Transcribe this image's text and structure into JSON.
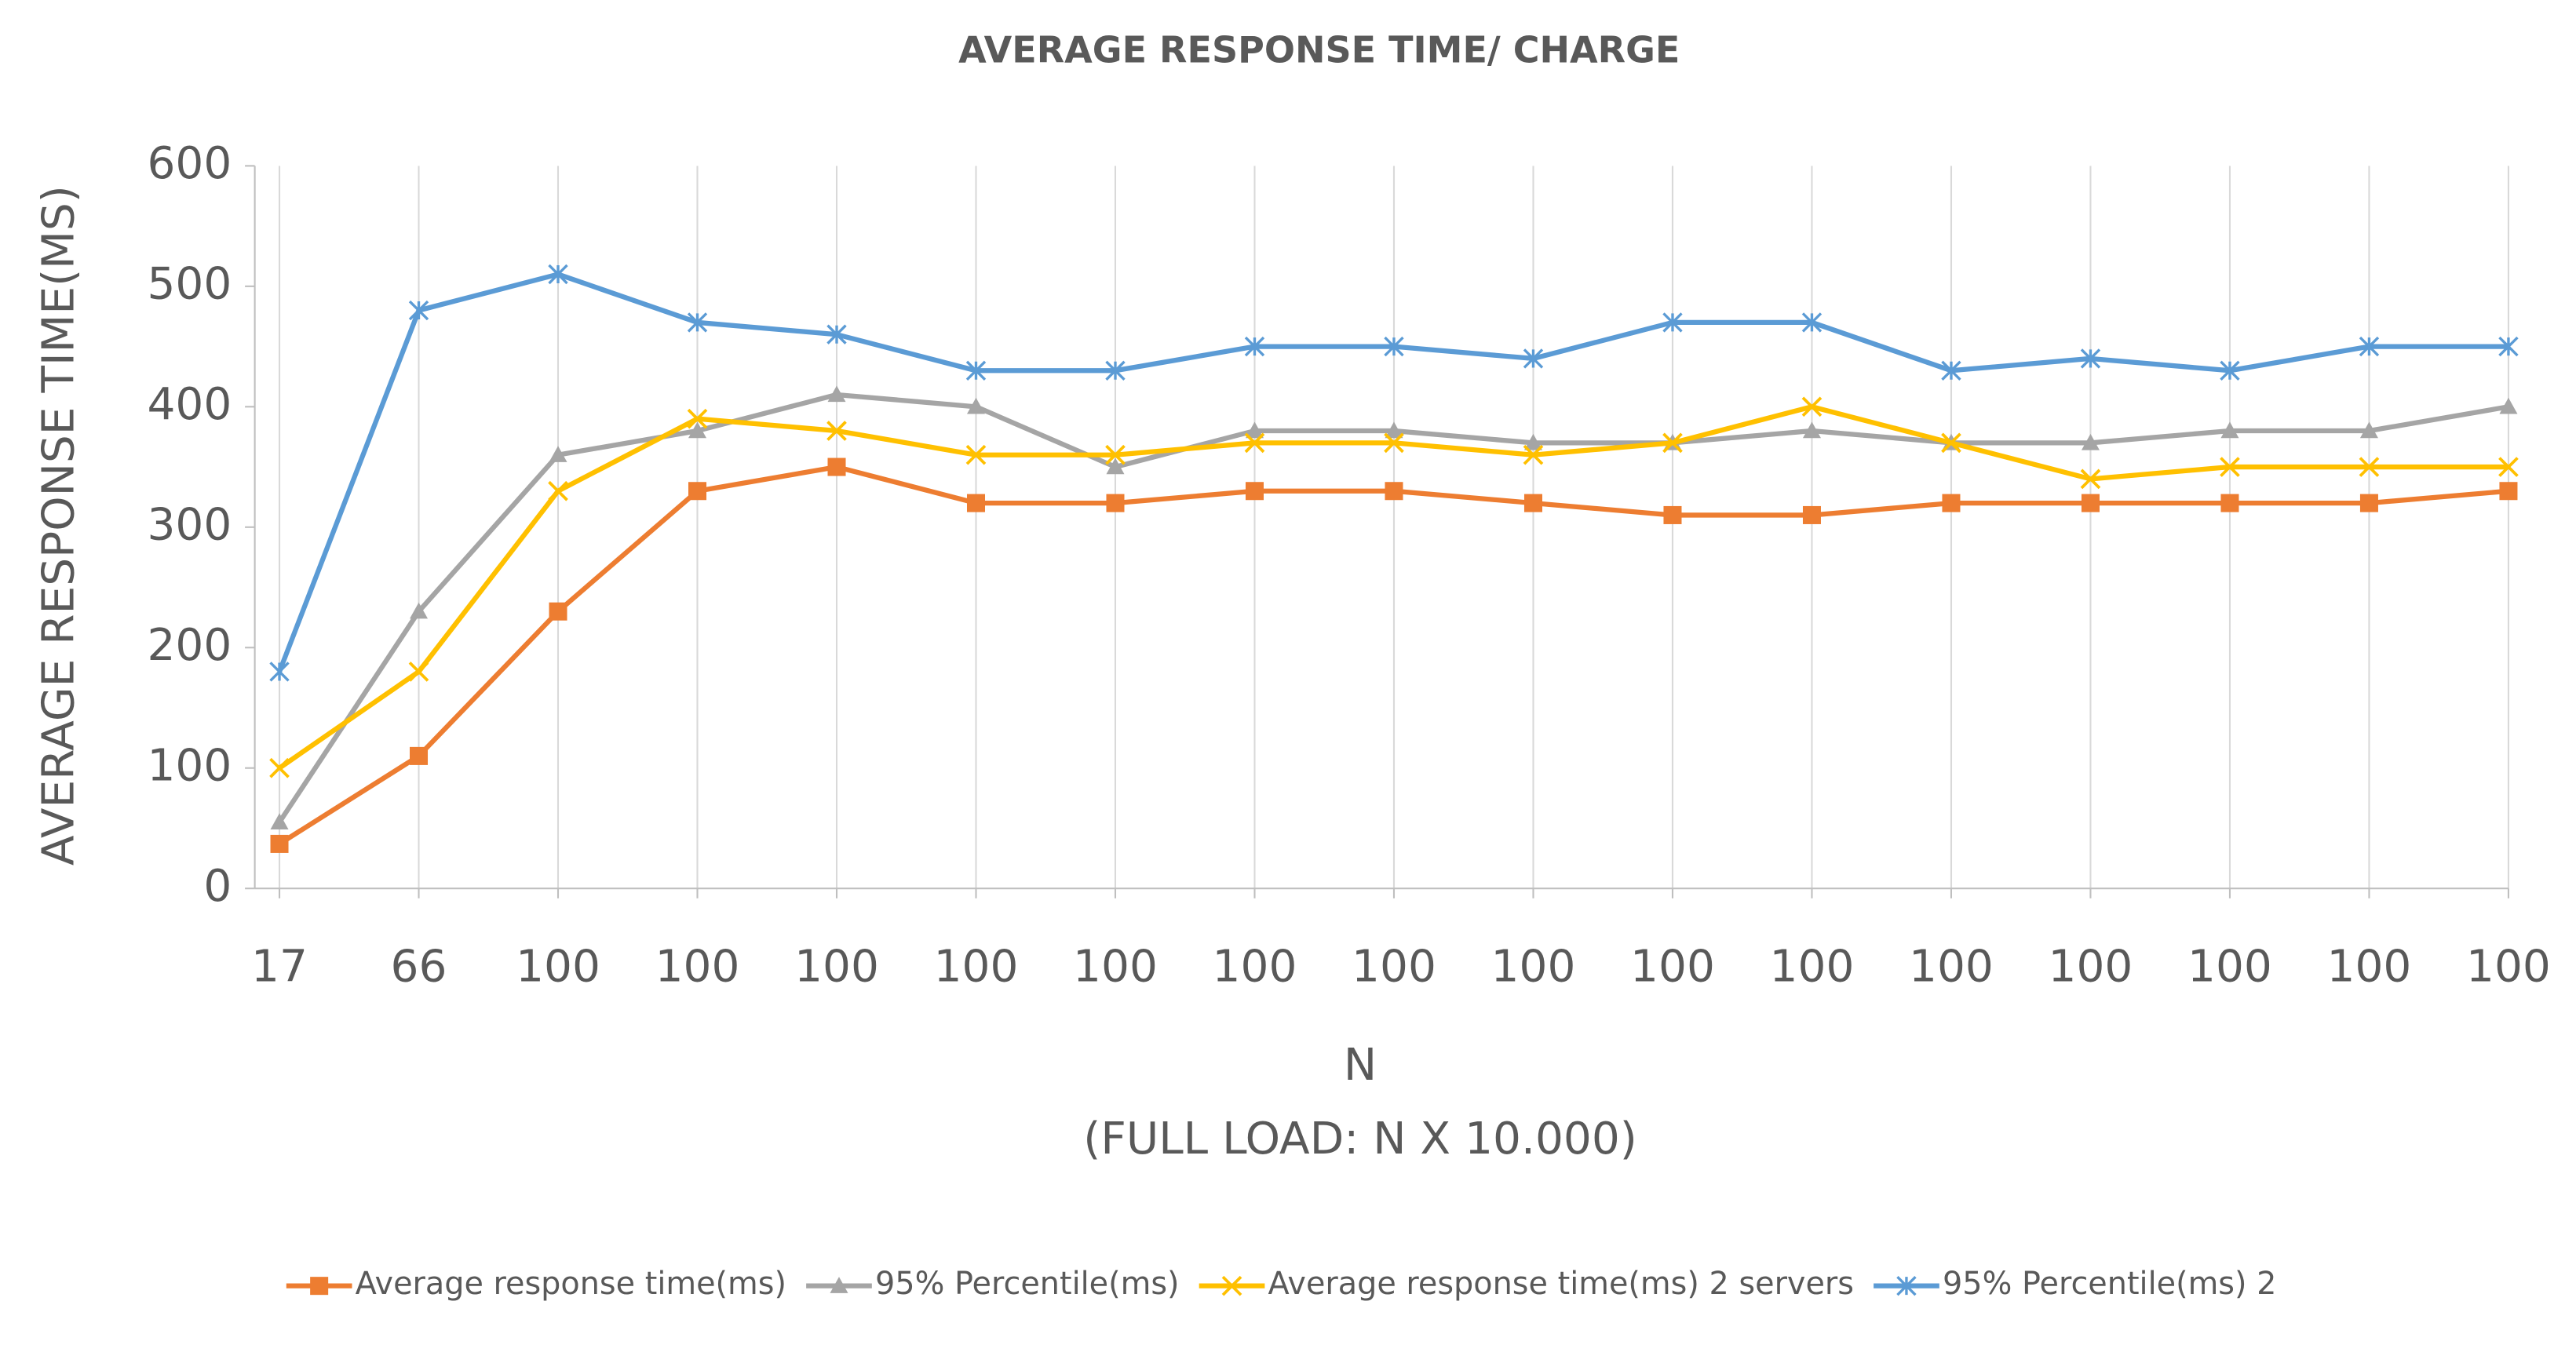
{
  "chart_data": {
    "type": "line",
    "title": "AVERAGE RESPONSE TIME/ CHARGE",
    "ylabel": "AVERAGE RESPONSE TIME(MS)",
    "xlabel": "N",
    "xlabel_note": "(FULL LOAD: N X 10.000)",
    "categories": [
      "17",
      "66",
      "100",
      "100",
      "100",
      "100",
      "100",
      "100",
      "100",
      "100",
      "100",
      "100",
      "100",
      "100",
      "100",
      "100",
      "100"
    ],
    "ylim": [
      0,
      600
    ],
    "yticks": [
      0,
      100,
      200,
      300,
      400,
      500,
      600
    ],
    "grid": "vertical",
    "legend": "bottom",
    "series": [
      {
        "name": "Average response time(ms)",
        "color": "#ed7d31",
        "marker": "square",
        "values": [
          37,
          110,
          230,
          330,
          350,
          320,
          320,
          330,
          330,
          320,
          310,
          310,
          320,
          320,
          320,
          320,
          330
        ]
      },
      {
        "name": "95% Percentile(ms)",
        "color": "#a5a5a5",
        "marker": "triangle",
        "values": [
          55,
          230,
          360,
          380,
          410,
          400,
          350,
          380,
          380,
          370,
          370,
          380,
          370,
          370,
          380,
          380,
          400
        ]
      },
      {
        "name": "Average response time(ms) 2 servers",
        "color": "#ffc000",
        "marker": "x",
        "values": [
          100,
          180,
          330,
          390,
          380,
          360,
          360,
          370,
          370,
          360,
          370,
          400,
          370,
          340,
          350,
          350,
          350
        ]
      },
      {
        "name": "95% Percentile(ms) 2",
        "color": "#5b9bd5",
        "marker": "star",
        "values": [
          180,
          480,
          510,
          470,
          460,
          430,
          430,
          450,
          450,
          440,
          470,
          470,
          430,
          440,
          430,
          450,
          450
        ]
      }
    ]
  }
}
